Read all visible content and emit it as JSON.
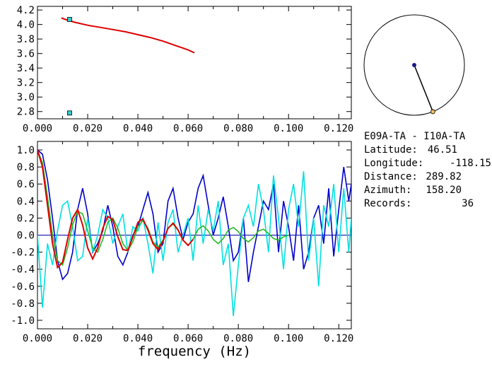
{
  "station": {
    "pair": "E09A-TA - I10A-TA",
    "fields": [
      {
        "label": "Latitude:",
        "value": "46.51"
      },
      {
        "label": "Longitude:",
        "value": "-118.15"
      },
      {
        "label": "Distance:",
        "value": "289.82"
      },
      {
        "label": "Azimuth:",
        "value": "158.20"
      },
      {
        "label": "Records:",
        "value": "36"
      }
    ]
  },
  "colors": {
    "red": "#dd0000",
    "green": "#22bb22",
    "cyan": "#00e0e0",
    "blue": "#0000cc",
    "marker": "#33cccc",
    "compass_end": "#f0c060"
  },
  "chart_data": [
    {
      "type": "line",
      "title": "",
      "xlabel": "",
      "ylabel": "",
      "xlim": [
        0.0,
        0.125
      ],
      "ylim": [
        2.7,
        4.25
      ],
      "xticks": [
        "0.000",
        "0.020",
        "0.040",
        "0.060",
        "0.080",
        "0.100",
        "0.120"
      ],
      "yticks": [
        "2.8",
        "3.0",
        "3.2",
        "3.4",
        "3.6",
        "3.8",
        "4.0",
        "4.2"
      ],
      "series": [
        {
          "color": "red",
          "x": [
            0.0095,
            0.012,
            0.015,
            0.02,
            0.025,
            0.03,
            0.035,
            0.04,
            0.045,
            0.05,
            0.055,
            0.06,
            0.0625
          ],
          "y": [
            4.09,
            4.06,
            4.03,
            3.99,
            3.96,
            3.93,
            3.9,
            3.86,
            3.82,
            3.77,
            3.71,
            3.65,
            3.61
          ]
        }
      ],
      "markers": [
        {
          "x": 0.0128,
          "y": 4.07
        },
        {
          "x": 0.0128,
          "y": 2.78
        }
      ]
    },
    {
      "type": "line",
      "title": "",
      "xlabel": "frequency (Hz)",
      "ylabel": "",
      "xlim": [
        0.0,
        0.125
      ],
      "ylim": [
        -1.1,
        1.1
      ],
      "xticks": [
        "0.000",
        "0.020",
        "0.040",
        "0.060",
        "0.080",
        "0.100",
        "0.120"
      ],
      "yticks": [
        "-1.0",
        "-0.8",
        "-0.6",
        "-0.4",
        "-0.2",
        "0.0",
        "0.2",
        "0.4",
        "0.6",
        "0.8",
        "1.0"
      ],
      "zero_line": true,
      "series": [
        {
          "color": "blue",
          "x": [
            0.0,
            0.002,
            0.004,
            0.006,
            0.008,
            0.01,
            0.012,
            0.014,
            0.016,
            0.018,
            0.02,
            0.022,
            0.024,
            0.026,
            0.028,
            0.03,
            0.032,
            0.034,
            0.036,
            0.038,
            0.04,
            0.042,
            0.044,
            0.046,
            0.048,
            0.05,
            0.052,
            0.054,
            0.056,
            0.058,
            0.06,
            0.062,
            0.064,
            0.066,
            0.068,
            0.07,
            0.072,
            0.074,
            0.076,
            0.078,
            0.08,
            0.082,
            0.084,
            0.086,
            0.088,
            0.09,
            0.092,
            0.094,
            0.096,
            0.098,
            0.1,
            0.102,
            0.104,
            0.106,
            0.108,
            0.11,
            0.112,
            0.114,
            0.116,
            0.118,
            0.12,
            0.122,
            0.124,
            0.125
          ],
          "y": [
            1.0,
            0.95,
            0.65,
            0.2,
            -0.3,
            -0.52,
            -0.45,
            -0.2,
            0.3,
            0.55,
            0.25,
            -0.2,
            -0.1,
            0.05,
            0.35,
            0.1,
            -0.25,
            -0.35,
            -0.2,
            0.0,
            0.1,
            0.3,
            0.5,
            0.25,
            -0.2,
            -0.1,
            0.4,
            0.55,
            0.2,
            -0.05,
            0.15,
            0.25,
            0.55,
            0.7,
            0.35,
            0.0,
            0.2,
            0.45,
            0.1,
            -0.3,
            -0.2,
            0.2,
            -0.55,
            -0.2,
            0.1,
            0.4,
            0.3,
            0.6,
            -0.2,
            0.4,
            0.1,
            -0.3,
            0.35,
            -0.4,
            -0.2,
            0.2,
            0.35,
            -0.1,
            0.55,
            -0.25,
            0.3,
            0.8,
            0.4,
            0.6
          ]
        },
        {
          "color": "cyan",
          "x": [
            0.0,
            0.002,
            0.004,
            0.006,
            0.008,
            0.01,
            0.012,
            0.014,
            0.016,
            0.018,
            0.02,
            0.022,
            0.024,
            0.026,
            0.028,
            0.03,
            0.032,
            0.034,
            0.036,
            0.038,
            0.04,
            0.042,
            0.044,
            0.046,
            0.048,
            0.05,
            0.052,
            0.054,
            0.056,
            0.058,
            0.06,
            0.062,
            0.064,
            0.066,
            0.068,
            0.07,
            0.072,
            0.074,
            0.076,
            0.078,
            0.08,
            0.082,
            0.084,
            0.086,
            0.088,
            0.09,
            0.092,
            0.094,
            0.096,
            0.098,
            0.1,
            0.102,
            0.104,
            0.106,
            0.108,
            0.11,
            0.112,
            0.114,
            0.116,
            0.118,
            0.12,
            0.122,
            0.124,
            0.125
          ],
          "y": [
            0.0,
            -0.85,
            -0.1,
            -0.35,
            0.05,
            0.35,
            0.4,
            0.1,
            -0.3,
            -0.25,
            0.2,
            -0.2,
            0.0,
            0.3,
            0.2,
            -0.1,
            0.1,
            0.25,
            -0.2,
            0.1,
            0.05,
            0.2,
            -0.1,
            -0.45,
            0.15,
            -0.3,
            0.15,
            0.3,
            -0.2,
            0.0,
            0.2,
            -0.3,
            0.35,
            -0.1,
            0.3,
            0.05,
            0.4,
            -0.35,
            -0.1,
            -0.95,
            -0.35,
            0.2,
            0.35,
            0.1,
            0.6,
            0.3,
            -0.2,
            0.7,
            0.2,
            -0.4,
            0.3,
            0.6,
            0.1,
            0.75,
            -0.3,
            0.2,
            -0.6,
            0.35,
            0.1,
            0.6,
            -0.2,
            0.55,
            -0.2,
            0.2
          ]
        },
        {
          "color": "green",
          "x": [
            0.0,
            0.002,
            0.004,
            0.006,
            0.008,
            0.01,
            0.012,
            0.014,
            0.016,
            0.018,
            0.02,
            0.022,
            0.024,
            0.026,
            0.028,
            0.03,
            0.032,
            0.034,
            0.036,
            0.038,
            0.04,
            0.042,
            0.044,
            0.046,
            0.048,
            0.05,
            0.052,
            0.054,
            0.056,
            0.058,
            0.06,
            0.062,
            0.064,
            0.066,
            0.068,
            0.07,
            0.072,
            0.074,
            0.076,
            0.078,
            0.08,
            0.082,
            0.084,
            0.086,
            0.088,
            0.09,
            0.092,
            0.094,
            0.096,
            0.098,
            0.1
          ],
          "y": [
            1.0,
            0.85,
            0.45,
            0.0,
            -0.3,
            -0.35,
            -0.15,
            0.12,
            0.28,
            0.25,
            0.05,
            -0.15,
            -0.2,
            -0.05,
            0.15,
            0.2,
            0.08,
            -0.1,
            -0.18,
            -0.08,
            0.1,
            0.17,
            0.08,
            -0.08,
            -0.14,
            -0.06,
            0.08,
            0.13,
            0.06,
            -0.06,
            -0.12,
            -0.05,
            0.07,
            0.11,
            0.05,
            -0.05,
            -0.1,
            -0.04,
            0.06,
            0.09,
            0.04,
            -0.04,
            -0.08,
            -0.03,
            0.05,
            0.07,
            0.02,
            -0.04,
            -0.06,
            -0.02,
            0.0
          ]
        },
        {
          "color": "red",
          "x": [
            0.0,
            0.002,
            0.004,
            0.006,
            0.008,
            0.01,
            0.012,
            0.014,
            0.016,
            0.018,
            0.02,
            0.022,
            0.024,
            0.026,
            0.028,
            0.03,
            0.032,
            0.034,
            0.036,
            0.038,
            0.04,
            0.042,
            0.044,
            0.046,
            0.048,
            0.05,
            0.052,
            0.054,
            0.056,
            0.058,
            0.06,
            0.062
          ],
          "y": [
            1.0,
            0.8,
            0.35,
            -0.1,
            -0.38,
            -0.32,
            -0.05,
            0.2,
            0.3,
            0.12,
            -0.15,
            -0.28,
            -0.15,
            0.08,
            0.22,
            0.18,
            -0.02,
            -0.17,
            -0.18,
            -0.02,
            0.15,
            0.19,
            0.06,
            -0.1,
            -0.17,
            -0.07,
            0.08,
            0.14,
            0.06,
            -0.06,
            -0.12,
            -0.05
          ]
        }
      ]
    }
  ],
  "compass": {
    "azimuth_deg": 158.2
  }
}
